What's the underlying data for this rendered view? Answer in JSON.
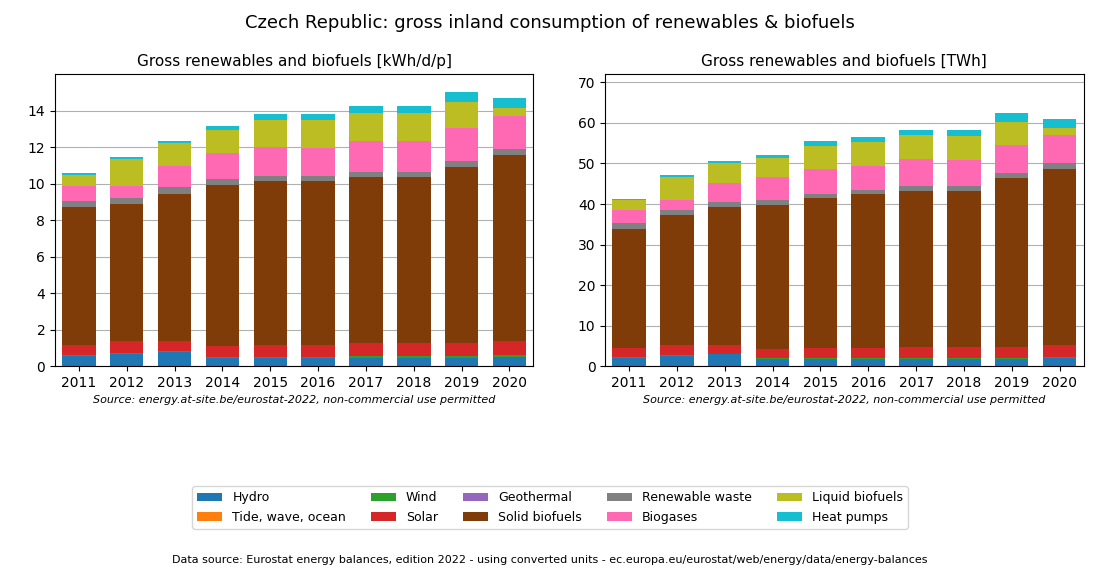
{
  "title": "Czech Republic: gross inland consumption of renewables & biofuels",
  "annotations": [
    "Data source: Eurostat energy balances, edition 2022 - using converted units - ec.europa.eu/eurostat/web/energy/data/energy-balances"
  ],
  "legend": "lower center",
  "chart_data": [
    {
      "type": "bar",
      "stacked": true,
      "grid": true,
      "title": "Gross renewables and biofuels [kWh/d/p]",
      "annotations": [
        "Source: energy.at-site.be/eurostat-2022, non-commercial use permitted"
      ],
      "categories": [
        "2011",
        "2012",
        "2013",
        "2014",
        "2015",
        "2016",
        "2017",
        "2018",
        "2019",
        "2020"
      ],
      "ylim": [
        0,
        16
      ],
      "yticks": [
        0,
        2,
        4,
        6,
        8,
        10,
        12,
        14
      ],
      "series": [
        {
          "name": "Hydro",
          "color": "#1f77b4",
          "values": [
            0.55,
            0.65,
            0.75,
            0.45,
            0.45,
            0.45,
            0.45,
            0.45,
            0.45,
            0.5
          ]
        },
        {
          "name": "Tide, wave, ocean",
          "color": "#ff7f0e",
          "values": [
            0.0,
            0.0,
            0.0,
            0.0,
            0.0,
            0.0,
            0.0,
            0.0,
            0.0,
            0.0
          ]
        },
        {
          "name": "Wind",
          "color": "#2ca02c",
          "values": [
            0.05,
            0.05,
            0.05,
            0.05,
            0.05,
            0.05,
            0.1,
            0.1,
            0.1,
            0.1
          ]
        },
        {
          "name": "Solar",
          "color": "#d62728",
          "values": [
            0.55,
            0.65,
            0.55,
            0.6,
            0.65,
            0.65,
            0.7,
            0.7,
            0.7,
            0.75
          ]
        },
        {
          "name": "Geothermal",
          "color": "#9467bd",
          "values": [
            0.0,
            0.0,
            0.0,
            0.0,
            0.0,
            0.0,
            0.0,
            0.0,
            0.0,
            0.0
          ]
        },
        {
          "name": "Solid biofuels",
          "color": "#7f3b08",
          "values": [
            7.55,
            7.55,
            8.1,
            8.85,
            9.0,
            9.0,
            9.1,
            9.1,
            9.65,
            10.2
          ]
        },
        {
          "name": "Renewable waste",
          "color": "#808080",
          "values": [
            0.35,
            0.3,
            0.35,
            0.3,
            0.3,
            0.25,
            0.3,
            0.3,
            0.35,
            0.35
          ]
        },
        {
          "name": "Biogases",
          "color": "#ff69b4",
          "values": [
            0.85,
            0.65,
            1.2,
            1.45,
            1.55,
            1.55,
            1.7,
            1.7,
            1.8,
            1.8
          ]
        },
        {
          "name": "Liquid biofuels",
          "color": "#bcbd22",
          "values": [
            0.6,
            1.5,
            1.25,
            1.25,
            1.5,
            1.55,
            1.55,
            1.55,
            1.45,
            0.45
          ]
        },
        {
          "name": "Heat pumps",
          "color": "#17becf",
          "values": [
            0.1,
            0.1,
            0.1,
            0.2,
            0.3,
            0.3,
            0.35,
            0.35,
            0.55,
            0.55
          ]
        }
      ]
    },
    {
      "type": "bar",
      "stacked": true,
      "grid": true,
      "title": "Gross renewables and biofuels [TWh]",
      "annotations": [
        "Source: energy.at-site.be/eurostat-2022, non-commercial use permitted"
      ],
      "categories": [
        "2011",
        "2012",
        "2013",
        "2014",
        "2015",
        "2016",
        "2017",
        "2018",
        "2019",
        "2020"
      ],
      "ylim": [
        0,
        72
      ],
      "yticks": [
        0,
        10,
        20,
        30,
        40,
        50,
        60,
        70
      ],
      "series": [
        {
          "name": "Hydro",
          "color": "#1f77b4",
          "values": [
            2.1,
            2.5,
            2.9,
            1.75,
            1.7,
            1.7,
            1.7,
            1.65,
            1.7,
            1.95
          ]
        },
        {
          "name": "Tide, wave, ocean",
          "color": "#ff7f0e",
          "values": [
            0.0,
            0.0,
            0.0,
            0.0,
            0.0,
            0.0,
            0.0,
            0.0,
            0.0,
            0.0
          ]
        },
        {
          "name": "Wind",
          "color": "#2ca02c",
          "values": [
            0.2,
            0.2,
            0.2,
            0.2,
            0.2,
            0.2,
            0.4,
            0.4,
            0.4,
            0.4
          ]
        },
        {
          "name": "Solar",
          "color": "#d62728",
          "values": [
            2.1,
            2.55,
            2.15,
            2.35,
            2.5,
            2.5,
            2.7,
            2.7,
            2.7,
            2.9
          ]
        },
        {
          "name": "Geothermal",
          "color": "#9467bd",
          "values": [
            0.0,
            0.0,
            0.0,
            0.0,
            0.0,
            0.0,
            0.0,
            0.0,
            0.0,
            0.0
          ]
        },
        {
          "name": "Solid biofuels",
          "color": "#7f3b08",
          "values": [
            29.5,
            32.0,
            34.0,
            35.5,
            37.0,
            38.0,
            38.5,
            38.5,
            41.5,
            43.5
          ]
        },
        {
          "name": "Renewable waste",
          "color": "#808080",
          "values": [
            1.35,
            1.15,
            1.35,
            1.15,
            1.15,
            0.95,
            1.2,
            1.2,
            1.35,
            1.35
          ]
        },
        {
          "name": "Biogases",
          "color": "#ff69b4",
          "values": [
            3.3,
            2.55,
            4.65,
            5.65,
            6.0,
            6.0,
            6.5,
            6.5,
            7.0,
            7.0
          ]
        },
        {
          "name": "Liquid biofuels",
          "color": "#bcbd22",
          "values": [
            2.35,
            5.8,
            4.85,
            4.85,
            5.8,
            6.0,
            5.95,
            5.95,
            5.6,
            1.75
          ]
        },
        {
          "name": "Heat pumps",
          "color": "#17becf",
          "values": [
            0.4,
            0.4,
            0.4,
            0.75,
            1.15,
            1.15,
            1.35,
            1.35,
            2.15,
            2.15
          ]
        }
      ]
    }
  ]
}
